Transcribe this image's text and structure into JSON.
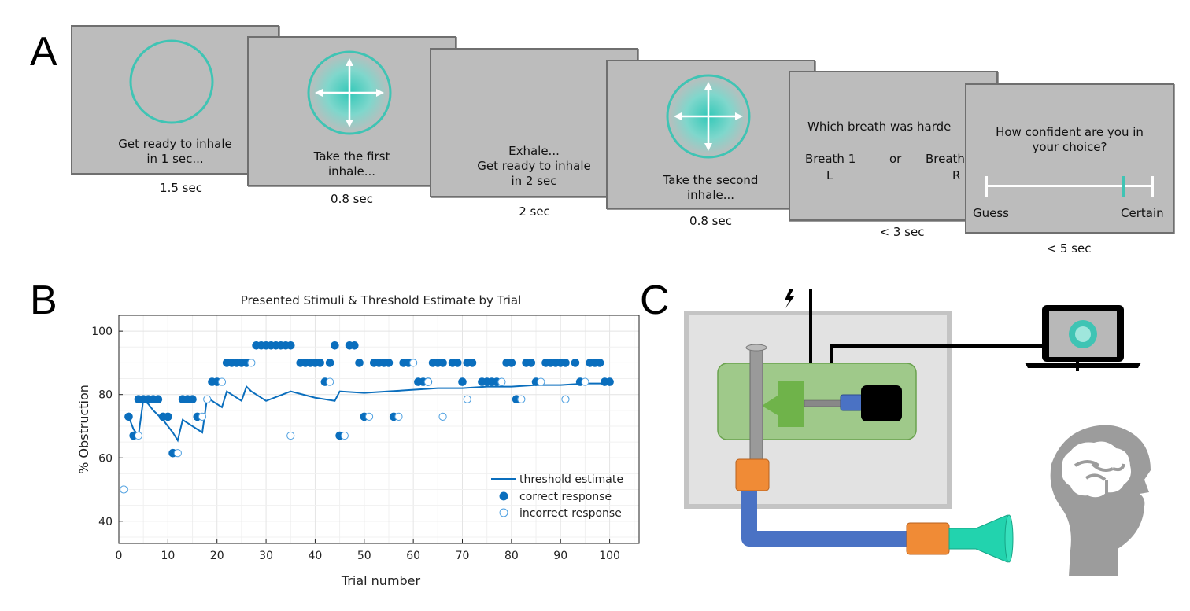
{
  "panels": {
    "a": "A",
    "b": "B",
    "c": "C"
  },
  "trial_screens": [
    {
      "text": "Get ready to inhale\nin 1 sec...",
      "duration": "1.5 sec",
      "icon": "empty-circle-icon"
    },
    {
      "text": "Take the first\ninhale...",
      "duration": "0.8 sec",
      "icon": "inhale-arrows-icon"
    },
    {
      "text": "Exhale...\nGet ready to inhale\nin 2 sec",
      "duration": "2 sec"
    },
    {
      "text": "Take the second\ninhale...",
      "duration": "0.8 sec",
      "icon": "inhale-arrows-icon"
    },
    {
      "question": "Which breath was harde",
      "left_label": "Breath 1",
      "left_key": "L",
      "or": "or",
      "right_label": "Breath",
      "right_key": "R",
      "duration": "< 3 sec"
    },
    {
      "question": "How confident are you in\nyour choice?",
      "scale_left": "Guess",
      "scale_right": "Certain",
      "duration": "< 5 sec",
      "slider_value": 0.83
    }
  ],
  "colors": {
    "teal": "#3fc4b4",
    "blue": "#0a6ebd",
    "screen_gray": "#bcbcbc",
    "green_box": "#9fc98a",
    "orange": "#f08b36",
    "tube_blue": "#4a72c4",
    "mouthpiece": "#22d3ae"
  },
  "chart_data": {
    "type": "scatter",
    "title": "Presented Stimuli & Threshold Estimate by Trial",
    "xlabel": "Trial number",
    "ylabel": "% Obstruction",
    "xlim": [
      0,
      106
    ],
    "ylim": [
      33,
      105
    ],
    "xticks": [
      0,
      10,
      20,
      30,
      40,
      50,
      60,
      70,
      80,
      90,
      100
    ],
    "yticks": [
      40,
      60,
      80,
      100
    ],
    "grid": true,
    "legend_position": "bottom-right",
    "series": [
      {
        "name": "threshold estimate",
        "kind": "line",
        "x": [
          2,
          3,
          4,
          5,
          6,
          7,
          8,
          9,
          10,
          11,
          12,
          13,
          14,
          15,
          16,
          17,
          18,
          19,
          20,
          21,
          22,
          23,
          24,
          25,
          26,
          27,
          28,
          29,
          30,
          35,
          40,
          44,
          45,
          50,
          55,
          60,
          65,
          70,
          75,
          80,
          85,
          90,
          95,
          100
        ],
        "y": [
          73,
          69,
          67,
          78.5,
          77,
          75,
          73.5,
          72,
          70,
          68,
          65.5,
          72,
          71,
          70,
          69,
          68,
          79,
          78,
          77,
          76,
          81,
          80,
          79,
          78,
          82.5,
          81,
          80,
          79,
          78,
          81,
          79,
          78,
          81,
          80.5,
          81,
          81.5,
          82,
          82,
          82.5,
          82.5,
          83,
          83,
          83.5,
          83.5
        ]
      },
      {
        "name": "correct response",
        "kind": "filled",
        "points": [
          [
            2,
            73
          ],
          [
            3,
            67
          ],
          [
            4,
            78.5
          ],
          [
            5,
            78.5
          ],
          [
            6,
            78.5
          ],
          [
            7,
            78.5
          ],
          [
            8,
            78.5
          ],
          [
            9,
            73
          ],
          [
            10,
            73
          ],
          [
            11,
            61.5
          ],
          [
            13,
            78.5
          ],
          [
            14,
            78.5
          ],
          [
            15,
            78.5
          ],
          [
            16,
            73
          ],
          [
            19,
            84
          ],
          [
            20,
            84
          ],
          [
            22,
            90
          ],
          [
            23,
            90
          ],
          [
            24,
            90
          ],
          [
            25,
            90
          ],
          [
            26,
            90
          ],
          [
            28,
            95.5
          ],
          [
            29,
            95.5
          ],
          [
            30,
            95.5
          ],
          [
            31,
            95.5
          ],
          [
            32,
            95.5
          ],
          [
            33,
            95.5
          ],
          [
            34,
            95.5
          ],
          [
            35,
            95.5
          ],
          [
            37,
            90
          ],
          [
            38,
            90
          ],
          [
            39,
            90
          ],
          [
            40,
            90
          ],
          [
            41,
            90
          ],
          [
            42,
            84
          ],
          [
            43,
            90
          ],
          [
            44,
            95.5
          ],
          [
            45,
            67
          ],
          [
            47,
            95.5
          ],
          [
            48,
            95.5
          ],
          [
            49,
            90
          ],
          [
            50,
            73
          ],
          [
            52,
            90
          ],
          [
            53,
            90
          ],
          [
            54,
            90
          ],
          [
            55,
            90
          ],
          [
            56,
            73
          ],
          [
            58,
            90
          ],
          [
            59,
            90
          ],
          [
            61,
            84
          ],
          [
            62,
            84
          ],
          [
            63,
            84
          ],
          [
            64,
            90
          ],
          [
            65,
            90
          ],
          [
            66,
            90
          ],
          [
            68,
            90
          ],
          [
            69,
            90
          ],
          [
            70,
            84
          ],
          [
            71,
            90
          ],
          [
            72,
            90
          ],
          [
            74,
            84
          ],
          [
            75,
            84
          ],
          [
            76,
            84
          ],
          [
            77,
            84
          ],
          [
            79,
            90
          ],
          [
            80,
            90
          ],
          [
            81,
            78.5
          ],
          [
            83,
            90
          ],
          [
            84,
            90
          ],
          [
            85,
            84
          ],
          [
            87,
            90
          ],
          [
            88,
            90
          ],
          [
            89,
            90
          ],
          [
            90,
            90
          ],
          [
            91,
            90
          ],
          [
            93,
            90
          ],
          [
            94,
            84
          ],
          [
            96,
            90
          ],
          [
            97,
            90
          ],
          [
            98,
            90
          ],
          [
            99,
            84
          ],
          [
            100,
            84
          ]
        ]
      },
      {
        "name": "incorrect response",
        "kind": "open",
        "points": [
          [
            1,
            50
          ],
          [
            4,
            67
          ],
          [
            12,
            61.5
          ],
          [
            17,
            73
          ],
          [
            18,
            78.5
          ],
          [
            21,
            84
          ],
          [
            27,
            90
          ],
          [
            35,
            67
          ],
          [
            43,
            84
          ],
          [
            46,
            67
          ],
          [
            51,
            73
          ],
          [
            57,
            73
          ],
          [
            60,
            90
          ],
          [
            63,
            84
          ],
          [
            66,
            73
          ],
          [
            71,
            78.5
          ],
          [
            78,
            84
          ],
          [
            82,
            78.5
          ],
          [
            86,
            84
          ],
          [
            91,
            78.5
          ],
          [
            95,
            84
          ]
        ]
      }
    ]
  }
}
